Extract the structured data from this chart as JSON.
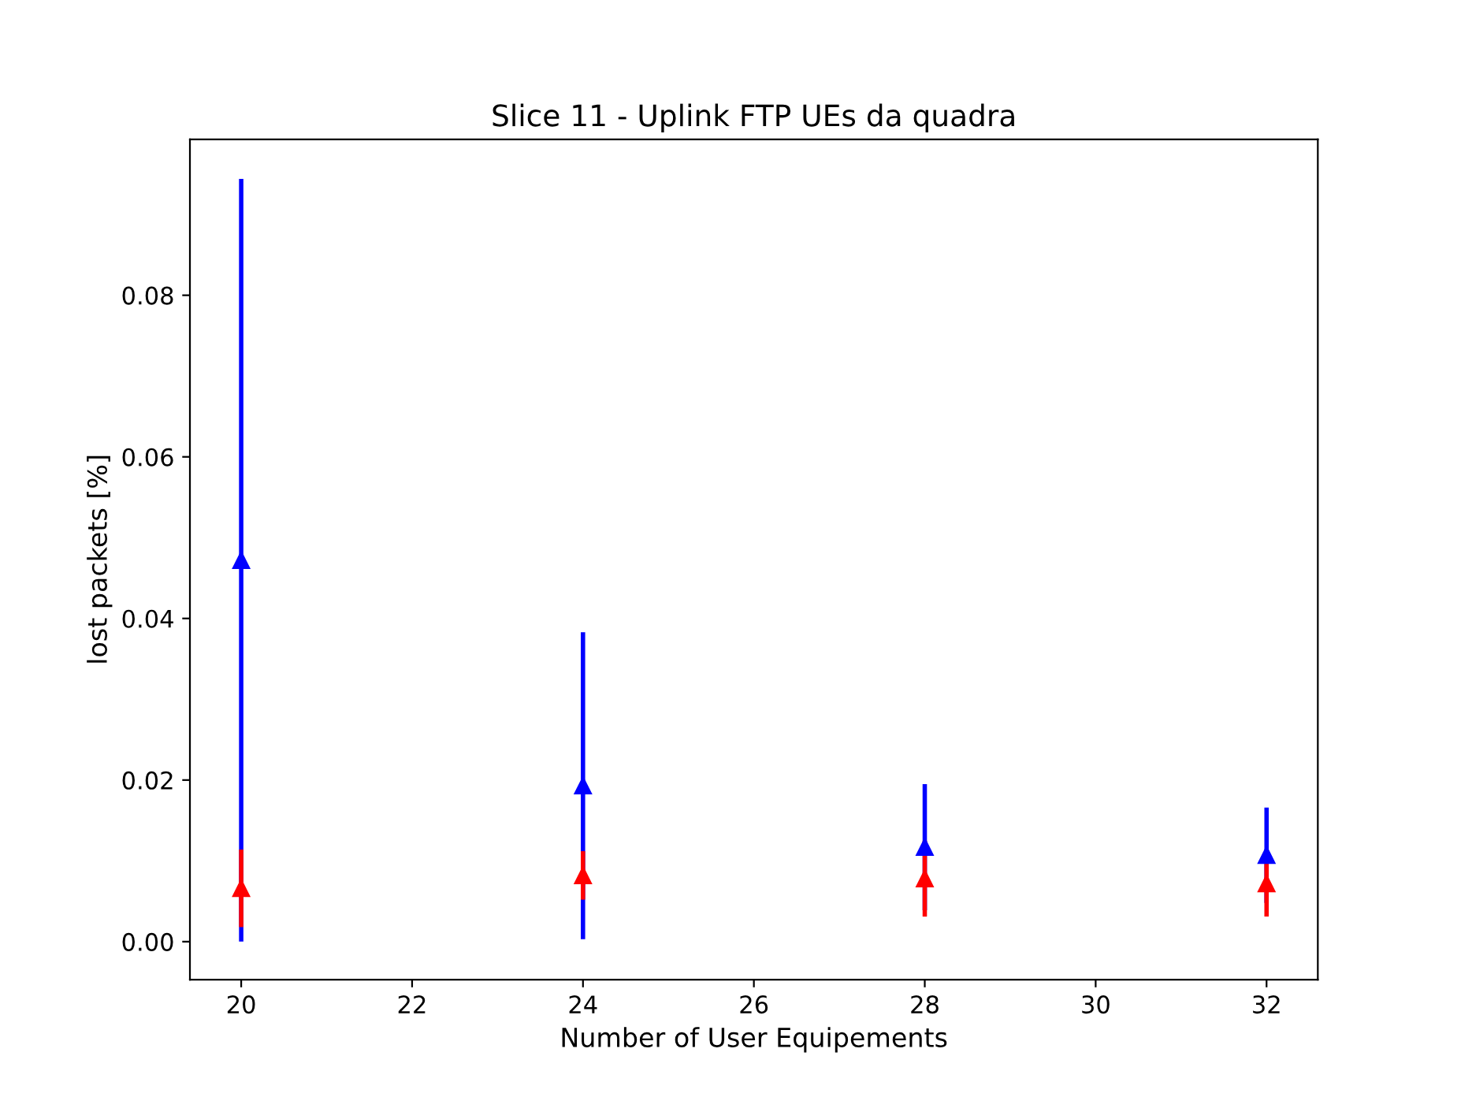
{
  "chart_data": {
    "type": "scatter",
    "title": "Slice 11 - Uplink FTP UEs da quadra",
    "xlabel": "Number of User Equipements",
    "ylabel": "lost packets [%]",
    "x": [
      20,
      24,
      28,
      32
    ],
    "series": [
      {
        "color": "#0000ff",
        "values": [
          0.0472,
          0.0193,
          0.0117,
          0.0107
        ],
        "errors": [
          0.0472,
          0.019,
          0.0078,
          0.0059
        ]
      },
      {
        "color": "#ff0000",
        "values": [
          0.0066,
          0.0082,
          0.0078,
          0.0072
        ],
        "errors": [
          0.0048,
          0.003,
          0.0047,
          0.0041
        ]
      }
    ],
    "xlim": [
      19.4,
      32.6
    ],
    "ylim": [
      -0.0047,
      0.0993
    ],
    "xticks": [
      20,
      22,
      24,
      26,
      28,
      30,
      32
    ],
    "yticks": [
      {
        "value": 0,
        "label": "0.00"
      },
      {
        "value": 0.02,
        "label": "0.02"
      },
      {
        "value": 0.04,
        "label": "0.04"
      },
      {
        "value": 0.06,
        "label": "0.06"
      },
      {
        "value": 0.08,
        "label": "0.08"
      }
    ],
    "marker": "triangle",
    "grid": false,
    "legend": false
  }
}
